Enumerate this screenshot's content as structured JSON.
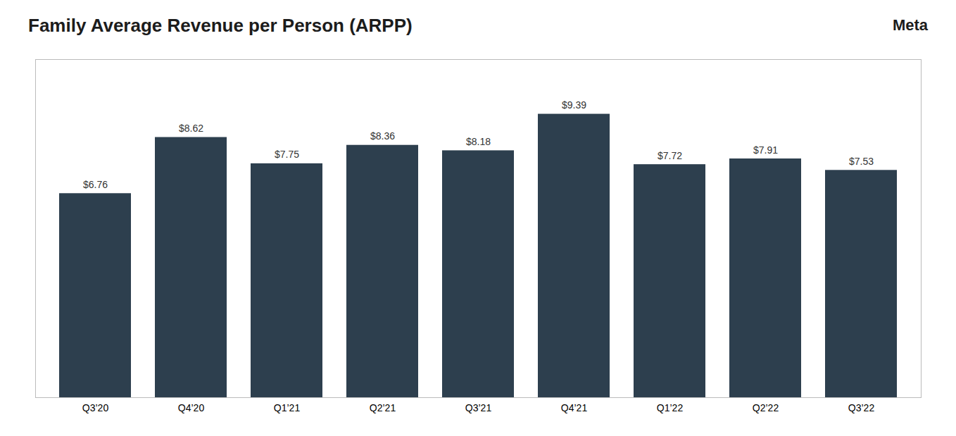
{
  "chart_data": {
    "type": "bar",
    "title": "Family Average Revenue per Person (ARPP)",
    "annotations": [
      "Meta"
    ],
    "categories": [
      "Q3’20",
      "Q4’20",
      "Q1’21",
      "Q2’21",
      "Q3’21",
      "Q4’21",
      "Q1’22",
      "Q2’22",
      "Q3’22"
    ],
    "values": [
      6.76,
      8.62,
      7.75,
      8.36,
      8.18,
      9.39,
      7.72,
      7.91,
      7.53
    ],
    "value_labels": [
      "$6.76",
      "$8.62",
      "$7.75",
      "$8.36",
      "$8.18",
      "$9.39",
      "$7.72",
      "$7.91",
      "$7.53"
    ],
    "color": "#2d3f4e",
    "ylim": [
      0,
      11.2
    ],
    "grid": false,
    "data_labels": true,
    "tick_labels": "x"
  }
}
